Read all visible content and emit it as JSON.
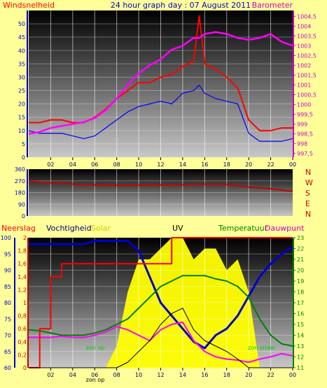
{
  "title": "24 hour graph day : 07 August 2011",
  "colors": {
    "page_bg": "#ffff99",
    "wind": "#ff0000",
    "gust": "#0000ff",
    "barometer": "#ff00ff",
    "direction": "#cc0000",
    "humidity": "#0000cc",
    "temperature": "#008000",
    "rain": "#ff0000",
    "dewpoint": "#ff00ff",
    "uv": "#000000",
    "solar": "#ffff00",
    "axis_left": "#0000cc",
    "axis_right_top": "#cc00cc",
    "axis_right_bottom": "#008000",
    "zon": "#00cc00"
  },
  "x_tick_labels": [
    "02",
    "04",
    "06",
    "08",
    "10",
    "12",
    "14",
    "16",
    "18",
    "20",
    "22",
    "00"
  ],
  "chart_data": [
    {
      "type": "line",
      "id": "wind-barometer",
      "left_label": "Windsnelheid",
      "right_label": "Barometer",
      "x_hours": [
        0,
        1,
        2,
        3,
        4,
        5,
        6,
        7,
        8,
        9,
        10,
        11,
        12,
        13,
        14,
        15,
        15.5,
        16,
        17,
        18,
        19,
        20,
        21,
        22,
        23,
        24
      ],
      "series": [
        {
          "key": "wind",
          "axis": "left",
          "values": [
            13,
            13,
            14,
            14,
            13,
            13,
            15,
            18,
            22,
            25,
            28,
            28,
            30,
            31,
            34,
            36,
            53,
            35,
            33,
            30,
            26,
            14,
            10,
            10,
            11,
            11
          ]
        },
        {
          "key": "gust",
          "axis": "left",
          "values": [
            10,
            9,
            9,
            9,
            8,
            7,
            8,
            11,
            14,
            17,
            19,
            20,
            21,
            20,
            24,
            25,
            27,
            24,
            22,
            21,
            20,
            9,
            6,
            6,
            6,
            7
          ]
        },
        {
          "key": "barometer",
          "axis": "right",
          "values": [
            998.5,
            998.6,
            998.8,
            998.9,
            999.0,
            999.1,
            999.3,
            999.7,
            1000.3,
            1001.0,
            1001.6,
            1002.0,
            1002.3,
            1002.8,
            1003.0,
            1003.4,
            1003.4,
            1003.6,
            1003.7,
            1003.6,
            1003.4,
            1003.3,
            1003.4,
            1003.6,
            1003.2,
            1003.0
          ]
        }
      ],
      "left_axis": {
        "min": 0,
        "max": 55,
        "ticks": [
          "0",
          "5",
          "10",
          "15",
          "20",
          "25",
          "30",
          "35",
          "40",
          "45",
          "50"
        ]
      },
      "right_axis": {
        "min": 997.3,
        "max": 1004.8,
        "ticks": [
          "997,5",
          "998",
          "998,5",
          "999",
          "999,5",
          "1000",
          "1000,5",
          "1001",
          "1001,5",
          "1002",
          "1002,5",
          "1003",
          "1003,5",
          "1004",
          "1004,5"
        ]
      }
    },
    {
      "type": "line",
      "id": "wind-direction",
      "right_labels": [
        "N",
        "W",
        "S",
        "E",
        "N"
      ],
      "x_hours": [
        0,
        2,
        4,
        6,
        8,
        10,
        12,
        14,
        16,
        18,
        20,
        22,
        24
      ],
      "series": [
        {
          "key": "direction",
          "axis": "left",
          "values": [
            268,
            255,
            245,
            238,
            235,
            236,
            238,
            240,
            245,
            242,
            222,
            210,
            190
          ]
        }
      ],
      "left_axis": {
        "min": 0,
        "max": 360,
        "ticks": [
          "0",
          "90",
          "180",
          "270",
          "360"
        ]
      }
    },
    {
      "type": "line",
      "id": "multi-weather",
      "labels": {
        "rain": "Neerslag",
        "humidity": "Vochtigheid",
        "solar": "Solar",
        "uv": "UV",
        "temperature": "Temperatuur",
        "dewpoint": "Dauwpunt"
      },
      "zon_op_label": "zon op",
      "zon_onder_label": "zon onder",
      "x_hours": [
        0,
        1,
        2,
        3,
        4,
        5,
        6,
        7,
        8,
        9,
        10,
        11,
        12,
        13,
        14,
        15,
        16,
        17,
        18,
        19,
        20,
        21,
        22,
        23,
        24
      ],
      "series": [
        {
          "key": "humidity",
          "axis": "left",
          "values": [
            98,
            98,
            98,
            98,
            98,
            98,
            99,
            99,
            99,
            99,
            96,
            88,
            80,
            76,
            72,
            68,
            66,
            70,
            72,
            76,
            82,
            88,
            92,
            95,
            97
          ]
        },
        {
          "key": "temperature",
          "axis": "right",
          "values": [
            14.5,
            14.4,
            14.2,
            14.0,
            14.0,
            14.0,
            14.2,
            14.5,
            15.0,
            15.5,
            16.5,
            17.5,
            18.5,
            19.0,
            19.5,
            19.5,
            19.5,
            19.2,
            19.0,
            18.5,
            17.5,
            15.5,
            14.0,
            13.2,
            13.0
          ]
        },
        {
          "key": "dewpoint",
          "axis": "right",
          "values": [
            13.8,
            13.8,
            13.8,
            13.9,
            13.8,
            13.8,
            14.0,
            14.3,
            14.8,
            14.5,
            14.0,
            13.5,
            14.5,
            15.0,
            15.2,
            13.5,
            12.5,
            12.0,
            11.8,
            11.7,
            11.5,
            11.8,
            12.0,
            12.3,
            12.1
          ]
        },
        {
          "key": "rain",
          "axis": "rain",
          "values": [
            0,
            0.6,
            1.4,
            1.6,
            1.6,
            1.6,
            1.6,
            1.6,
            1.6,
            1.6,
            1.6,
            1.6,
            1.6,
            2.0,
            2.0,
            2.0,
            2.0,
            2.0,
            2.0,
            2.0,
            2.0,
            2.0,
            2.0,
            2.0,
            2.0
          ]
        },
        {
          "key": "uv",
          "axis": "right",
          "values": [
            11,
            11,
            11,
            11,
            11,
            11,
            11,
            11,
            11,
            11.5,
            12.5,
            13.5,
            15.0,
            16.0,
            16.5,
            14.5,
            13.5,
            13.0,
            12.5,
            11.8,
            11,
            11,
            11,
            11,
            11
          ]
        },
        {
          "key": "solar",
          "axis": "right",
          "values": [
            11,
            11,
            11,
            11,
            11,
            11,
            11,
            11,
            13,
            18,
            21,
            21,
            22,
            23,
            23,
            21,
            22,
            22,
            20,
            21,
            18,
            11,
            11,
            11,
            11
          ]
        }
      ],
      "left_axis": {
        "min": 60,
        "max": 100,
        "ticks": [
          "60",
          "65",
          "70",
          "75",
          "80",
          "85",
          "90",
          "95",
          "100"
        ]
      },
      "rain_axis": {
        "min": 0,
        "max": 2,
        "ticks": [
          "0",
          "0,2",
          "0,4",
          "0,6",
          "0,8",
          "1",
          "1,2",
          "1,4",
          "1,6",
          "1,8",
          "2"
        ]
      },
      "right_axis": {
        "min": 11,
        "max": 23,
        "ticks": [
          "11",
          "12",
          "13",
          "14",
          "15",
          "16",
          "17",
          "18",
          "19",
          "20",
          "21",
          "22",
          "23"
        ]
      }
    }
  ]
}
